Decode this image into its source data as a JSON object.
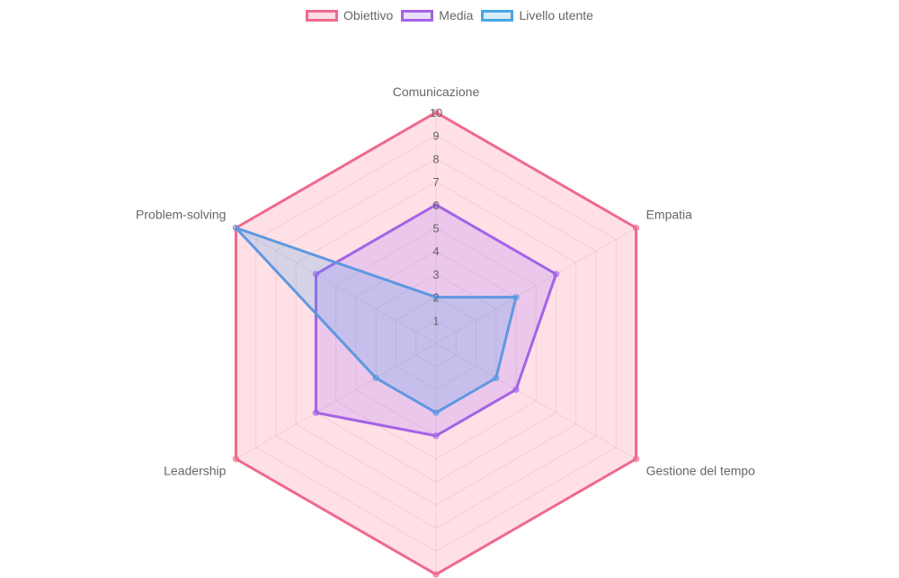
{
  "chart_data": {
    "type": "radar",
    "title": "",
    "categories": [
      "Comunicazione",
      "Empatia",
      "Gestione del tempo",
      "",
      "Leadership",
      "Problem-solving"
    ],
    "series": [
      {
        "name": "Obiettivo",
        "values": [
          10,
          10,
          10,
          10,
          10,
          10
        ],
        "border": "#ee6a8c",
        "fill": "rgba(255,99,132,0.2)"
      },
      {
        "name": "Media",
        "values": [
          6,
          6,
          4,
          4,
          6,
          6
        ],
        "border": "#a463e6",
        "fill": "rgba(153,102,255,0.2)"
      },
      {
        "name": "Livello utente",
        "values": [
          2,
          4,
          3,
          3,
          3,
          10
        ],
        "border": "#5f98e0",
        "fill": "rgba(54,162,235,0.2)"
      }
    ],
    "r_ticks": [
      "1",
      "2",
      "3",
      "4",
      "5",
      "6",
      "7",
      "8",
      "9",
      "10"
    ],
    "rlim": [
      0,
      10
    ],
    "legend_position": "top",
    "grid": true
  },
  "legend": {
    "items": [
      {
        "label": "Obiettivo",
        "border": "#ee6a8c",
        "fill": "#ffdde5"
      },
      {
        "label": "Media",
        "border": "#a463e6",
        "fill": "#eadff9"
      },
      {
        "label": "Livello utente",
        "border": "#47a6e6",
        "fill": "#d9ecfa"
      }
    ]
  }
}
